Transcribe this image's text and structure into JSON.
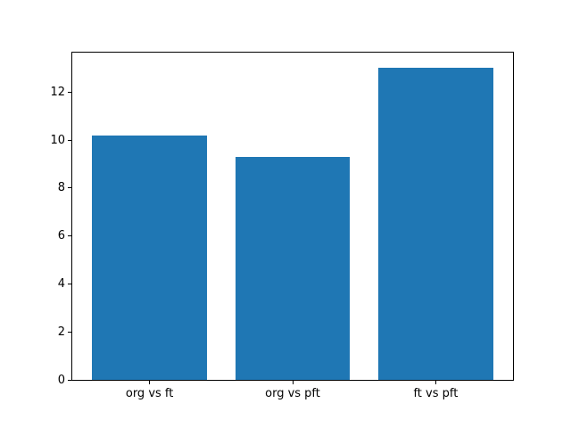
{
  "figure": {
    "background": "#ffffff",
    "spine_color": "#000000",
    "text_color": "#000000"
  },
  "chart_data": {
    "type": "bar",
    "categories": [
      "org vs ft",
      "org vs pft",
      "ft vs pft"
    ],
    "values": [
      10.2,
      9.3,
      13.0
    ],
    "title": "",
    "xlabel": "",
    "ylabel": "",
    "ylim": [
      0,
      13.65
    ],
    "xlim": [
      -0.54,
      2.54
    ],
    "yticks": [
      0,
      2,
      4,
      6,
      8,
      10,
      12
    ],
    "bar_color": "#1f77b4",
    "bar_width_fraction": 0.8,
    "grid": false,
    "legend": null
  }
}
